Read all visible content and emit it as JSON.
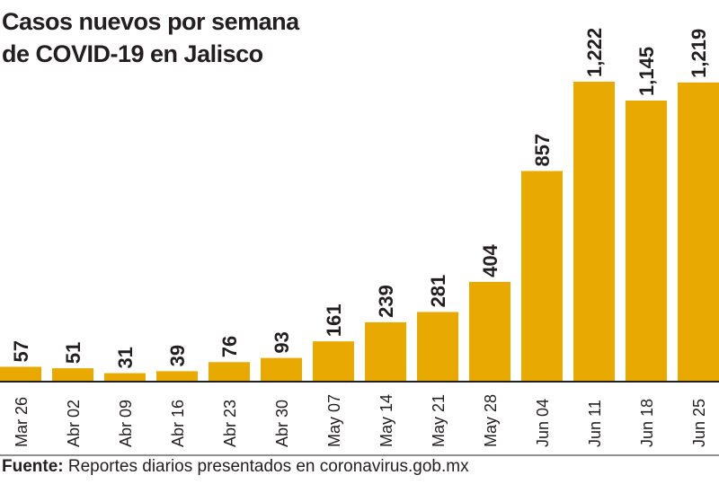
{
  "chart_data": {
    "type": "bar",
    "title": "Casos nuevos por semana de COVID-19 en Jalisco",
    "title_lines": [
      "Casos nuevos por semana",
      "de COVID-19 en Jalisco"
    ],
    "xlabel": "",
    "ylabel": "",
    "categories": [
      "Mar 26",
      "Abr 02",
      "Abr 09",
      "Abr 16",
      "Abr 23",
      "Abr 30",
      "May 07",
      "May 14",
      "May 21",
      "May 28",
      "Jun 04",
      "Jun 11",
      "Jun 18",
      "Jun 25"
    ],
    "values": [
      57,
      51,
      31,
      39,
      76,
      93,
      161,
      239,
      281,
      404,
      857,
      1222,
      1145,
      1219
    ],
    "data_labels": [
      "57",
      "51",
      "31",
      "39",
      "76",
      "93",
      "161",
      "239",
      "281",
      "404",
      "857",
      "1,222",
      "1,145",
      "1,219"
    ],
    "ylim": [
      0,
      1222
    ],
    "grid": false,
    "legend": "none",
    "bar_color": "#e8a900",
    "text_color": "#231f20"
  },
  "source": {
    "label": "Fuente:",
    "text": " Reportes diarios presentados en coronavirus.gob.mx"
  }
}
